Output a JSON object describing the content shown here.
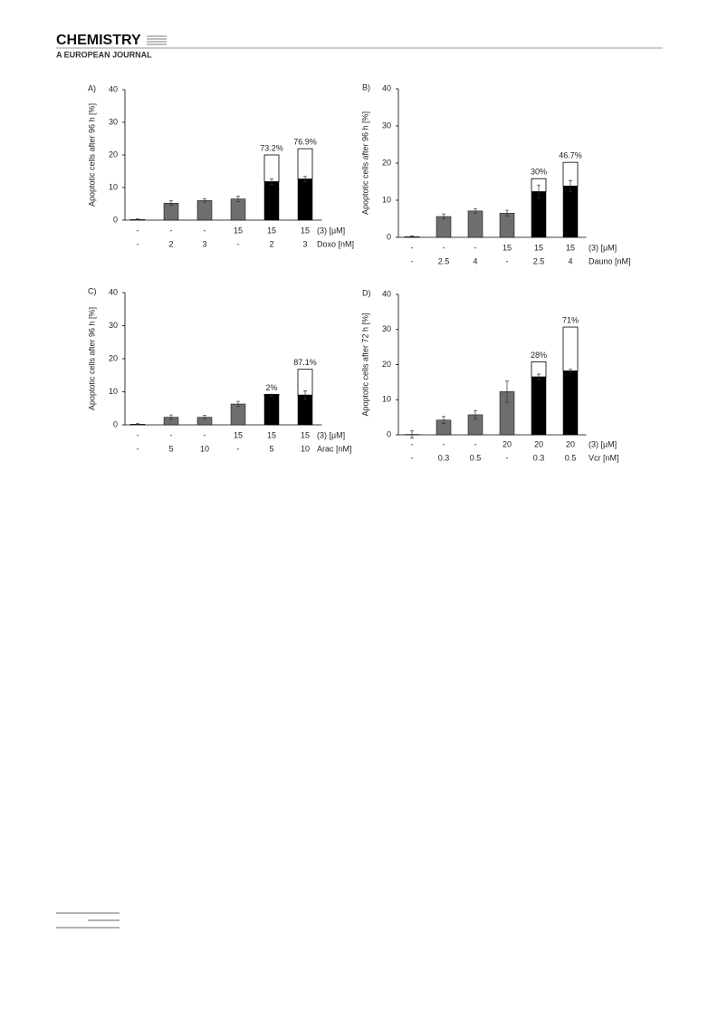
{
  "header": {
    "title": "CHEMISTRY",
    "subtitle": "A EUROPEAN JOURNAL"
  },
  "chart_data": [
    {
      "type": "bar",
      "panel": "A)",
      "y_label": "Apoptotic cells after 96 h [%]",
      "ylim": [
        0,
        40
      ],
      "yticks": [
        0,
        10,
        20,
        30,
        40
      ],
      "row_labels": [
        "(3) [µM]",
        "Doxo [nM]"
      ],
      "rows": [
        [
          "-",
          "-",
          "-",
          "15",
          "15",
          "15"
        ],
        [
          "-",
          "2",
          "3",
          "-",
          "2",
          "3"
        ]
      ],
      "values": [
        0.2,
        5.2,
        6.0,
        6.5,
        11.8,
        12.6
      ],
      "errors": [
        0.2,
        0.7,
        0.5,
        0.8,
        0.8,
        0.8
      ],
      "colors": [
        "#6e6e6e",
        "#6e6e6e",
        "#6e6e6e",
        "#6e6e6e",
        "#000000",
        "#000000"
      ],
      "top_values": [
        null,
        null,
        null,
        null,
        8.2,
        9.3
      ],
      "top_color": "#ffffff",
      "annotations": [
        null,
        null,
        null,
        null,
        "73.2%",
        "76.9%"
      ]
    },
    {
      "type": "bar",
      "panel": "B)",
      "y_label": "Apoptotic cells after 96 h [%]",
      "ylim": [
        0,
        40
      ],
      "yticks": [
        0,
        10,
        20,
        30,
        40
      ],
      "row_labels": [
        "(3) [µM]",
        "Dauno [nM]"
      ],
      "rows": [
        [
          "-",
          "-",
          "-",
          "15",
          "15",
          "15"
        ],
        [
          "-",
          "2.5",
          "4",
          "-",
          "2.5",
          "4"
        ]
      ],
      "values": [
        0.2,
        5.6,
        7.1,
        6.5,
        12.3,
        13.8
      ],
      "errors": [
        0.2,
        0.7,
        0.6,
        0.8,
        1.8,
        1.5
      ],
      "colors": [
        "#6e6e6e",
        "#6e6e6e",
        "#6e6e6e",
        "#6e6e6e",
        "#000000",
        "#000000"
      ],
      "top_values": [
        null,
        null,
        null,
        null,
        3.5,
        6.4
      ],
      "top_color": "#ffffff",
      "annotations": [
        null,
        null,
        null,
        null,
        "30%",
        "46.7%"
      ]
    },
    {
      "type": "bar",
      "panel": "C)",
      "y_label": "Apoptotic cells after 96 h [%]",
      "ylim": [
        0,
        40
      ],
      "yticks": [
        0,
        10,
        20,
        30,
        40
      ],
      "row_labels": [
        "(3) [µM]",
        "Arac [nM]"
      ],
      "rows": [
        [
          "-",
          "-",
          "-",
          "15",
          "15",
          "15"
        ],
        [
          "-",
          "5",
          "10",
          "-",
          "5",
          "10"
        ]
      ],
      "values": [
        0.2,
        2.3,
        2.3,
        6.3,
        9.0,
        9.0
      ],
      "errors": [
        0.2,
        0.7,
        0.6,
        0.8,
        0.3,
        1.3
      ],
      "colors": [
        "#6e6e6e",
        "#6e6e6e",
        "#6e6e6e",
        "#6e6e6e",
        "#000000",
        "#000000"
      ],
      "top_values": [
        null,
        null,
        null,
        null,
        0.2,
        7.8
      ],
      "top_color": "#ffffff",
      "annotations": [
        null,
        null,
        null,
        null,
        "2%",
        "87.1%"
      ]
    },
    {
      "type": "bar",
      "panel": "D)",
      "y_label": "Apoptotic cells after 72 h [%]",
      "ylim": [
        0,
        40
      ],
      "yticks": [
        0,
        10,
        20,
        30,
        40
      ],
      "row_labels": [
        "(3) [µM]",
        "Vcr [nM]"
      ],
      "rows": [
        [
          "-",
          "-",
          "-",
          "20",
          "20",
          "20"
        ],
        [
          "-",
          "0.3",
          "0.5",
          "-",
          "0.3",
          "0.5"
        ]
      ],
      "values": [
        0.1,
        4.2,
        5.7,
        12.3,
        16.5,
        18.2
      ],
      "errors": [
        1.0,
        1.0,
        1.2,
        3.0,
        0.8,
        0.5
      ],
      "colors": [
        "#6e6e6e",
        "#6e6e6e",
        "#6e6e6e",
        "#6e6e6e",
        "#000000",
        "#000000"
      ],
      "top_values": [
        null,
        null,
        null,
        null,
        4.3,
        12.5
      ],
      "top_color": "#ffffff",
      "annotations": [
        null,
        null,
        null,
        null,
        "28%",
        "71%"
      ]
    }
  ]
}
